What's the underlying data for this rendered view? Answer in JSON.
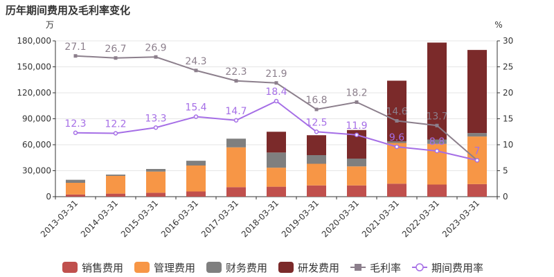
{
  "chart_data": {
    "type": "bar",
    "title": "历年期间费用及毛利率变化",
    "y_left_unit": "万",
    "y_right_unit": "%",
    "ylim_left": [
      0,
      180000
    ],
    "ylim_right": [
      0,
      30
    ],
    "y_left_ticks": [
      "0",
      "30,000",
      "60,000",
      "90,000",
      "120,000",
      "150,000",
      "180,000"
    ],
    "y_right_ticks": [
      "0",
      "5",
      "10",
      "15",
      "20",
      "25",
      "30"
    ],
    "categories": [
      "2013-03-31",
      "2014-03-31",
      "2015-03-31",
      "2016-03-31",
      "2017-03-31",
      "2018-03-31",
      "2019-03-31",
      "2020-03-31",
      "2021-03-31",
      "2022-03-31",
      "2023-03-31"
    ],
    "series": [
      {
        "name": "销售费用",
        "type": "stacked-bar",
        "axis": "left",
        "color": "#c0504d",
        "values": [
          2500,
          3500,
          4500,
          6000,
          11000,
          11500,
          13000,
          13000,
          15000,
          14000,
          14500
        ]
      },
      {
        "name": "管理费用",
        "type": "stacked-bar",
        "axis": "left",
        "color": "#f79646",
        "values": [
          13500,
          20500,
          24500,
          30000,
          46000,
          22000,
          25000,
          22000,
          47000,
          47000,
          55000
        ]
      },
      {
        "name": "财务费用",
        "type": "stacked-bar",
        "axis": "left",
        "color": "#7f7f7f",
        "values": [
          3500,
          1500,
          3000,
          5500,
          10000,
          17500,
          10000,
          9000,
          2000,
          5000,
          4000
        ]
      },
      {
        "name": "研发费用",
        "type": "stacked-bar",
        "axis": "left",
        "color": "#7b2a2a",
        "values": [
          0,
          0,
          0,
          0,
          0,
          24000,
          23000,
          33000,
          70000,
          112000,
          96000
        ]
      },
      {
        "name": "毛利率",
        "type": "line",
        "axis": "right",
        "color": "#8c7f8c",
        "marker": "square",
        "values": [
          27.1,
          26.7,
          26.9,
          24.3,
          22.3,
          21.9,
          16.8,
          18.2,
          14.6,
          13.7,
          7
        ],
        "labels": [
          "27.1",
          "26.7",
          "26.9",
          "24.3",
          "22.3",
          "21.9",
          "16.8",
          "18.2",
          "14.6",
          "13.7",
          ""
        ]
      },
      {
        "name": "期间费用率",
        "type": "line",
        "axis": "right",
        "color": "#a56ee6",
        "marker": "circle",
        "values": [
          12.3,
          12.2,
          13.3,
          15.4,
          14.7,
          18.4,
          12.5,
          11.9,
          9.6,
          8.8,
          7
        ],
        "labels": [
          "12.3",
          "12.2",
          "13.3",
          "15.4",
          "14.7",
          "18.4",
          "12.5",
          "11.9",
          "9.6",
          "8.8",
          "7"
        ]
      }
    ],
    "legend_position": "bottom",
    "grid": "horizontal"
  }
}
